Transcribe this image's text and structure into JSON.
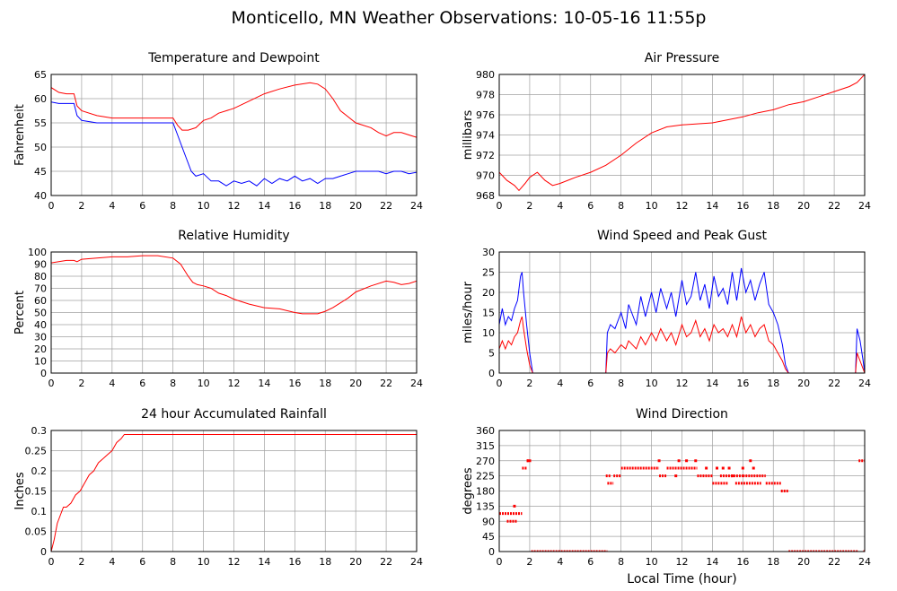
{
  "page": {
    "title": "Monticello, MN Weather Observations: 10-05-16 11:55p",
    "footer_xlabel": "Local Time (hour)"
  },
  "colors": {
    "red": "#ff0000",
    "blue": "#0000ff",
    "grid": "#a0a0a0",
    "frame": "#000000"
  },
  "chart_data": [
    {
      "id": "temp",
      "type": "line",
      "title": "Temperature and Dewpoint",
      "ylabel": "Fahrenheit",
      "xlim": [
        0,
        24
      ],
      "ylim": [
        40,
        65
      ],
      "xticks": [
        0,
        2,
        4,
        6,
        8,
        10,
        12,
        14,
        16,
        18,
        20,
        22,
        24
      ],
      "yticks": [
        40,
        45,
        50,
        55,
        60,
        65
      ],
      "grid": true,
      "series": [
        {
          "color": "#ff0000",
          "x": [
            0,
            0.5,
            1,
            1.5,
            1.7,
            2,
            3,
            4,
            5,
            6,
            7,
            7.5,
            8,
            8.3,
            8.6,
            9,
            9.5,
            10,
            10.5,
            11,
            12,
            13,
            14,
            15,
            16,
            17,
            17.5,
            18,
            18.5,
            19,
            20,
            21,
            21.5,
            22,
            22.5,
            23,
            23.5,
            24
          ],
          "y": [
            62.3,
            61.3,
            61,
            61,
            58.5,
            57.5,
            56.5,
            56,
            56,
            56,
            56,
            56,
            56,
            54.5,
            53.5,
            53.5,
            54,
            55.5,
            56,
            57,
            58,
            59.5,
            61,
            62,
            62.8,
            63.3,
            63,
            62,
            60,
            57.5,
            55,
            54,
            53,
            52.3,
            53,
            53,
            52.5,
            52
          ]
        },
        {
          "color": "#0000ff",
          "x": [
            0,
            0.5,
            1,
            1.5,
            1.7,
            2,
            3,
            4,
            5,
            6,
            7,
            7.5,
            8,
            8.3,
            8.6,
            8.9,
            9.2,
            9.5,
            10,
            10.5,
            11,
            11.5,
            12,
            12.5,
            13,
            13.5,
            14,
            14.5,
            15,
            15.5,
            16,
            16.5,
            17,
            17.5,
            18,
            18.5,
            19,
            19.5,
            20,
            21,
            21.5,
            22,
            22.5,
            23,
            23.5,
            24
          ],
          "y": [
            59.3,
            59,
            59,
            59,
            56.5,
            55.5,
            55,
            55,
            55,
            55,
            55,
            55,
            55,
            52.5,
            50,
            47.5,
            45,
            44,
            44.5,
            43,
            43,
            42,
            43,
            42.5,
            43,
            42,
            43.5,
            42.5,
            43.5,
            43,
            44,
            43,
            43.5,
            42.5,
            43.5,
            43.5,
            44,
            44.5,
            45,
            45,
            45,
            44.5,
            45,
            45,
            44.5,
            44.8
          ]
        }
      ]
    },
    {
      "id": "pressure",
      "type": "line",
      "title": "Air Pressure",
      "ylabel": "millibars",
      "xlim": [
        0,
        24
      ],
      "ylim": [
        968,
        980
      ],
      "xticks": [
        0,
        2,
        4,
        6,
        8,
        10,
        12,
        14,
        16,
        18,
        20,
        22,
        24
      ],
      "yticks": [
        968,
        970,
        972,
        974,
        976,
        978,
        980
      ],
      "grid": true,
      "series": [
        {
          "color": "#ff0000",
          "x": [
            0,
            0.5,
            1,
            1.3,
            1.7,
            2,
            2.5,
            3,
            3.5,
            4,
            5,
            6,
            7,
            8,
            9,
            10,
            11,
            12,
            13,
            14,
            15,
            16,
            17,
            18,
            19,
            20,
            21,
            22,
            23,
            23.5,
            24
          ],
          "y": [
            970.3,
            969.5,
            969,
            968.5,
            969.2,
            969.8,
            970.3,
            969.5,
            969,
            969.2,
            969.8,
            970.3,
            971,
            972,
            973.2,
            974.2,
            974.8,
            975,
            975.1,
            975.2,
            975.5,
            975.8,
            976.2,
            976.5,
            977,
            977.3,
            977.8,
            978.3,
            978.8,
            979.2,
            980
          ]
        }
      ]
    },
    {
      "id": "humidity",
      "type": "line",
      "title": "Relative Humidity",
      "ylabel": "Percent",
      "xlim": [
        0,
        24
      ],
      "ylim": [
        0,
        100
      ],
      "xticks": [
        0,
        2,
        4,
        6,
        8,
        10,
        12,
        14,
        16,
        18,
        20,
        22,
        24
      ],
      "yticks": [
        0,
        10,
        20,
        30,
        40,
        50,
        60,
        70,
        80,
        90,
        100
      ],
      "grid": true,
      "series": [
        {
          "color": "#ff0000",
          "x": [
            0,
            0.5,
            1,
            1.5,
            1.7,
            2,
            3,
            4,
            5,
            6,
            7,
            8,
            8.5,
            9,
            9.3,
            9.6,
            10,
            10.5,
            11,
            11.5,
            12,
            13,
            14,
            15,
            16,
            16.5,
            17,
            17.5,
            18,
            18.5,
            19,
            19.5,
            20,
            21,
            22,
            22.5,
            23,
            23.5,
            24
          ],
          "y": [
            91,
            92,
            93,
            93,
            92,
            94,
            95,
            96,
            96,
            97,
            97,
            95,
            90,
            80,
            75,
            73,
            72,
            70,
            66,
            64,
            61,
            57,
            54,
            53,
            50,
            49,
            49,
            49,
            51,
            54,
            58,
            62,
            67,
            72,
            76,
            75,
            73,
            74,
            76
          ]
        }
      ]
    },
    {
      "id": "wind",
      "type": "line",
      "title": "Wind Speed and Peak Gust",
      "ylabel": "miles/hour",
      "xlim": [
        0,
        24
      ],
      "ylim": [
        0,
        30
      ],
      "xticks": [
        0,
        2,
        4,
        6,
        8,
        10,
        12,
        14,
        16,
        18,
        20,
        22,
        24
      ],
      "yticks": [
        0,
        5,
        10,
        15,
        20,
        25,
        30
      ],
      "grid": true,
      "series": [
        {
          "color": "#0000ff",
          "x": [
            0,
            0.2,
            0.4,
            0.6,
            0.8,
            1,
            1.2,
            1.4,
            1.5,
            1.6,
            1.8,
            2,
            2.2,
            2.3,
            7,
            7.1,
            7.3,
            7.6,
            8,
            8.3,
            8.5,
            9,
            9.3,
            9.6,
            10,
            10.3,
            10.6,
            11,
            11.3,
            11.6,
            12,
            12.3,
            12.6,
            12.9,
            13.2,
            13.5,
            13.8,
            14.1,
            14.4,
            14.7,
            15,
            15.3,
            15.6,
            15.9,
            16.2,
            16.5,
            16.8,
            17.1,
            17.4,
            17.7,
            18,
            18.3,
            18.6,
            18.8,
            19,
            23.4,
            23.5,
            23.7,
            23.9,
            24
          ],
          "y": [
            12,
            16,
            12,
            14,
            13,
            16,
            18,
            24,
            25,
            20,
            12,
            5,
            0,
            0,
            0,
            10,
            12,
            11,
            15,
            11,
            17,
            12,
            19,
            14,
            20,
            15,
            21,
            16,
            20,
            14,
            23,
            17,
            19,
            25,
            18,
            22,
            16,
            24,
            19,
            21,
            17,
            25,
            18,
            26,
            20,
            23,
            18,
            22,
            25,
            17,
            15,
            12,
            7,
            2,
            0,
            0,
            11,
            8,
            3,
            0
          ]
        },
        {
          "color": "#ff0000",
          "x": [
            0,
            0.2,
            0.4,
            0.6,
            0.8,
            1,
            1.2,
            1.4,
            1.5,
            1.6,
            1.8,
            2,
            2.2,
            2.3,
            7,
            7.1,
            7.3,
            7.6,
            8,
            8.3,
            8.5,
            9,
            9.3,
            9.6,
            10,
            10.3,
            10.6,
            11,
            11.3,
            11.6,
            12,
            12.3,
            12.6,
            12.9,
            13.2,
            13.5,
            13.8,
            14.1,
            14.4,
            14.7,
            15,
            15.3,
            15.6,
            15.9,
            16.2,
            16.5,
            16.8,
            17.1,
            17.4,
            17.7,
            18,
            18.3,
            18.6,
            18.8,
            19,
            23.4,
            23.5,
            23.7,
            23.9,
            24
          ],
          "y": [
            6,
            8,
            6,
            8,
            7,
            9,
            10,
            13,
            14,
            11,
            6,
            2,
            0,
            0,
            0,
            5,
            6,
            5,
            7,
            6,
            8,
            6,
            9,
            7,
            10,
            8,
            11,
            8,
            10,
            7,
            12,
            9,
            10,
            13,
            9,
            11,
            8,
            12,
            10,
            11,
            9,
            12,
            9,
            14,
            10,
            12,
            9,
            11,
            12,
            8,
            7,
            5,
            3,
            1,
            0,
            0,
            5,
            3,
            1,
            0
          ]
        }
      ]
    },
    {
      "id": "rain",
      "type": "line",
      "title": "24 hour Accumulated Rainfall",
      "ylabel": "Inches",
      "xlim": [
        0,
        24
      ],
      "ylim": [
        0,
        0.3
      ],
      "xticks": [
        0,
        2,
        4,
        6,
        8,
        10,
        12,
        14,
        16,
        18,
        20,
        22,
        24
      ],
      "yticks": [
        0,
        0.05,
        0.1,
        0.15,
        0.2,
        0.25,
        0.3
      ],
      "grid": true,
      "series": [
        {
          "color": "#ff0000",
          "x": [
            0,
            0.2,
            0.4,
            0.6,
            0.8,
            1,
            1.3,
            1.6,
            1.9,
            2.2,
            2.5,
            2.8,
            3.1,
            3.4,
            3.7,
            4,
            4.3,
            4.6,
            4.8,
            5,
            6,
            8,
            10,
            12,
            14,
            16,
            18,
            20,
            22,
            24
          ],
          "y": [
            0,
            0.03,
            0.07,
            0.09,
            0.11,
            0.11,
            0.12,
            0.14,
            0.15,
            0.17,
            0.19,
            0.2,
            0.22,
            0.23,
            0.24,
            0.25,
            0.27,
            0.28,
            0.29,
            0.29,
            0.29,
            0.29,
            0.29,
            0.29,
            0.29,
            0.29,
            0.29,
            0.29,
            0.29,
            0.29
          ]
        }
      ]
    },
    {
      "id": "direction",
      "type": "scatter",
      "title": "Wind Direction",
      "ylabel": "degrees",
      "xlabel": "Local Time (hour)",
      "xlim": [
        0,
        24
      ],
      "ylim": [
        0,
        360
      ],
      "xticks": [
        0,
        2,
        4,
        6,
        8,
        10,
        12,
        14,
        16,
        18,
        20,
        22,
        24
      ],
      "yticks": [
        0,
        45,
        90,
        135,
        180,
        225,
        270,
        315,
        360
      ],
      "grid": true,
      "segments": [
        {
          "x0": 0,
          "x1": 1.5,
          "y": 113
        },
        {
          "x0": 0.5,
          "x1": 1.2,
          "y": 90
        },
        {
          "x0": 1.5,
          "x1": 1.8,
          "y": 248
        },
        {
          "x0": 1.8,
          "x1": 2.1,
          "y": 270
        },
        {
          "x0": 2.1,
          "x1": 7.1,
          "y": 0
        },
        {
          "x0": 7,
          "x1": 7.3,
          "y": 225
        },
        {
          "x0": 7.1,
          "x1": 7.5,
          "y": 203
        },
        {
          "x0": 7.5,
          "x1": 8,
          "y": 225
        },
        {
          "x0": 8,
          "x1": 10.5,
          "y": 248
        },
        {
          "x0": 10.5,
          "x1": 11,
          "y": 225
        },
        {
          "x0": 11,
          "x1": 13,
          "y": 248
        },
        {
          "x0": 13,
          "x1": 14,
          "y": 225
        },
        {
          "x0": 14,
          "x1": 15,
          "y": 203
        },
        {
          "x0": 14.5,
          "x1": 16,
          "y": 225
        },
        {
          "x0": 15.5,
          "x1": 17.2,
          "y": 203
        },
        {
          "x0": 16,
          "x1": 17.5,
          "y": 225
        },
        {
          "x0": 17.5,
          "x1": 18.5,
          "y": 203
        },
        {
          "x0": 18.5,
          "x1": 19,
          "y": 180
        },
        {
          "x0": 19,
          "x1": 23.6,
          "y": 0
        },
        {
          "x0": 23.6,
          "x1": 24,
          "y": 270
        }
      ],
      "points": [
        {
          "x": 1.0,
          "y": 135
        },
        {
          "x": 1.9,
          "y": 270
        },
        {
          "x": 10.5,
          "y": 270
        },
        {
          "x": 11.8,
          "y": 270
        },
        {
          "x": 12.3,
          "y": 270
        },
        {
          "x": 12.9,
          "y": 270
        },
        {
          "x": 13.6,
          "y": 248
        },
        {
          "x": 14.3,
          "y": 248
        },
        {
          "x": 14.7,
          "y": 248
        },
        {
          "x": 15.1,
          "y": 248
        },
        {
          "x": 16.0,
          "y": 248
        },
        {
          "x": 16.5,
          "y": 270
        },
        {
          "x": 16.7,
          "y": 248
        },
        {
          "x": 15.3,
          "y": 225
        },
        {
          "x": 11.6,
          "y": 225
        },
        {
          "x": 24.0,
          "y": 0
        }
      ]
    }
  ]
}
